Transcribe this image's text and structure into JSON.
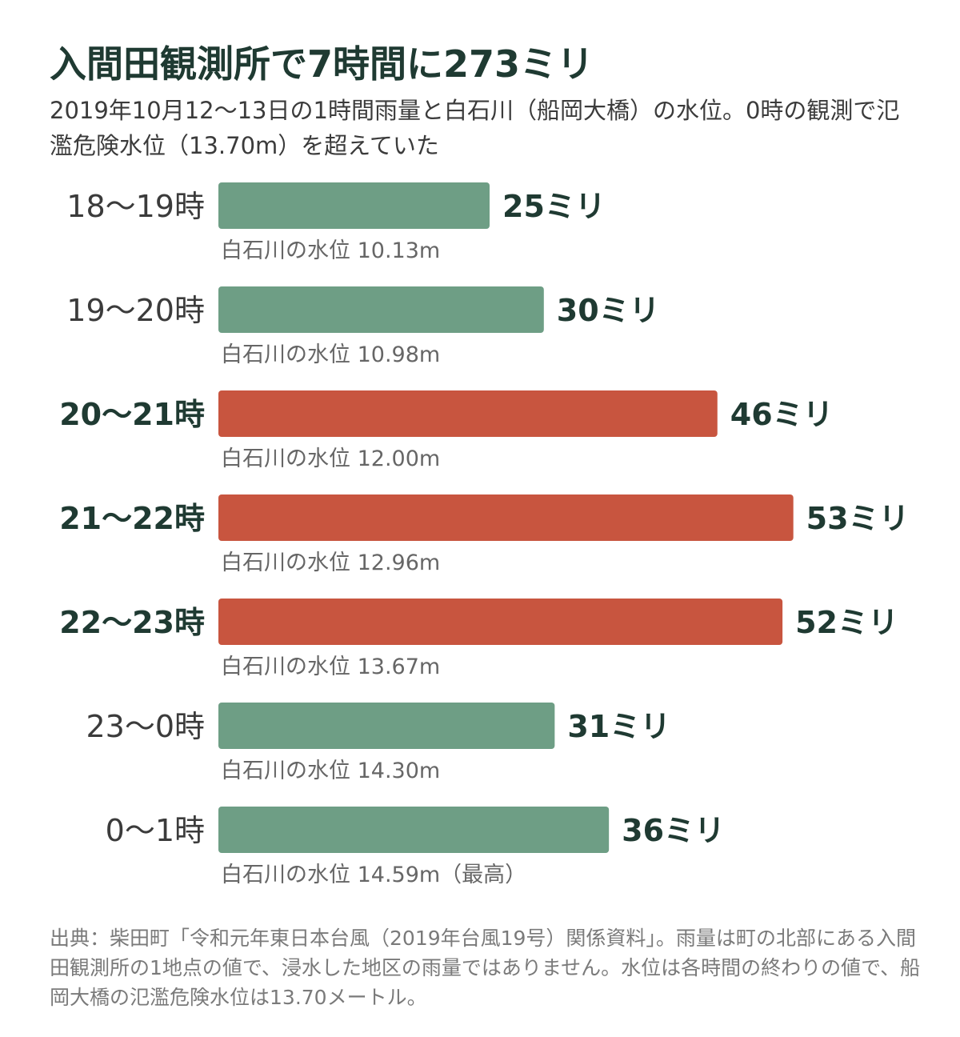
{
  "title": "入間田観測所で7時間に273ミリ",
  "subtitle": "2019年10月12〜13日の1時間雨量と白石川（船岡大橋）の水位。0時の観測で氾濫危険水位（13.70m）を超えていた",
  "source_note": "出典：柴田町「令和元年東日本台風（2019年台風19号）関係資料」。雨量は町の北部にある入間田観測所の1地点の値で、浸水した地区の雨量ではありません。水位は各時間の終わりの値で、船岡大橋の氾濫危険水位は13.70メートル。",
  "colors": {
    "normal": "#6e9e85",
    "highlight": "#c8553f",
    "label": "#1f3a32",
    "water_text": "#666666"
  },
  "chart_data": {
    "type": "bar",
    "orientation": "horizontal",
    "title": "入間田観測所で7時間に273ミリ",
    "categories": [
      "18〜19時",
      "19〜20時",
      "20〜21時",
      "21〜22時",
      "22〜23時",
      "23〜0時",
      "0〜1時"
    ],
    "values": [
      25,
      30,
      46,
      53,
      52,
      31,
      36
    ],
    "value_labels": [
      "25ミリ",
      "30ミリ",
      "46ミリ",
      "53ミリ",
      "52ミリ",
      "31ミリ",
      "36ミリ"
    ],
    "water_level_labels": [
      "白石川の水位 10.13m",
      "白石川の水位 10.98m",
      "白石川の水位 12.00m",
      "白石川の水位 12.96m",
      "白石川の水位 13.67m",
      "白石川の水位 14.30m",
      "白石川の水位 14.59m（最高）"
    ],
    "water_levels_m": [
      10.13,
      10.98,
      12.0,
      12.96,
      13.67,
      14.3,
      14.59
    ],
    "highlighted": [
      false,
      false,
      true,
      true,
      true,
      false,
      false
    ],
    "unit": "ミリ",
    "grid": false,
    "legend": "none"
  }
}
